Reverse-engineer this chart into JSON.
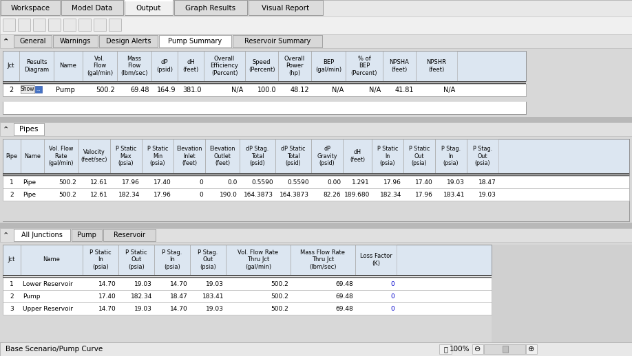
{
  "bg_color": "#c8c8c8",
  "top_tabs": [
    "Workspace",
    "Model Data",
    "Output",
    "Graph Results",
    "Visual Report"
  ],
  "active_top_tab": "Output",
  "sub_tabs": [
    "General",
    "Warnings",
    "Design Alerts",
    "Pump Summary",
    "Reservoir Summary"
  ],
  "active_sub_tab": "Pump Summary",
  "pump_summary_rows": [
    [
      "2",
      "Show",
      "Pump",
      "500.2",
      "69.48",
      "164.9",
      "381.0",
      "N/A",
      "100.0",
      "48.12",
      "N/A",
      "N/A",
      "41.81",
      "N/A"
    ]
  ],
  "pipes_rows": [
    [
      "1",
      "Pipe",
      "500.2",
      "12.61",
      "17.96",
      "17.40",
      "0",
      "0.0",
      "0.5590",
      "0.5590",
      "0.00",
      "1.291",
      "17.96",
      "17.40",
      "19.03",
      "18.47"
    ],
    [
      "2",
      "Pipe",
      "500.2",
      "12.61",
      "182.34",
      "17.96",
      "0",
      "190.0",
      "164.3873",
      "164.3873",
      "82.26",
      "189.680",
      "182.34",
      "17.96",
      "183.41",
      "19.03"
    ]
  ],
  "junctions_tabs": [
    "All Junctions",
    "Pump",
    "Reservoir"
  ],
  "active_junctions_tab": "All Junctions",
  "junctions_rows": [
    [
      "1",
      "Lower Reservoir",
      "14.70",
      "19.03",
      "14.70",
      "19.03",
      "500.2",
      "69.48",
      "0"
    ],
    [
      "2",
      "Pump",
      "17.40",
      "182.34",
      "18.47",
      "183.41",
      "500.2",
      "69.48",
      "0"
    ],
    [
      "3",
      "Upper Reservoir",
      "14.70",
      "19.03",
      "14.70",
      "19.03",
      "500.2",
      "69.48",
      "0"
    ]
  ],
  "status_bar": "Base Scenario/Pump Curve"
}
